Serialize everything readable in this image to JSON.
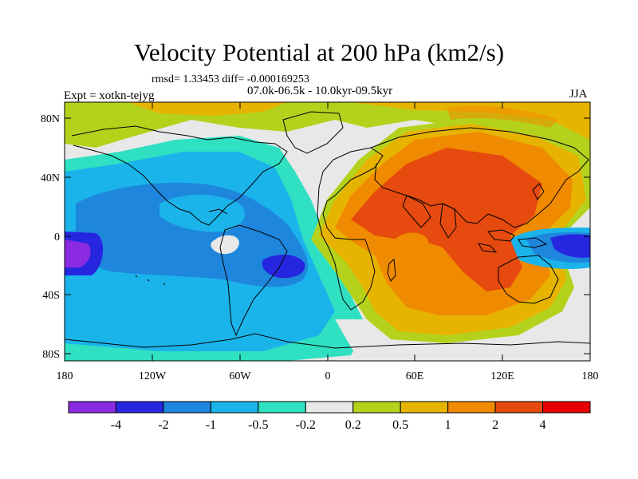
{
  "header": {
    "title": "Velocity Potential at 200 hPa (km2/s)",
    "rmsd_text": "rmsd= 1.33453 diff= -0.000169253",
    "expt": "Expt = xotkn-tejyg",
    "period": "07.0k-06.5k - 10.0kyr-09.5kyr",
    "season": "JJA"
  },
  "axes": {
    "x_ticks": [
      "180",
      "120W",
      "60W",
      "0",
      "60E",
      "120E",
      "180"
    ],
    "y_ticks": [
      "80N",
      "40N",
      "0",
      "40S",
      "80S"
    ]
  },
  "colorbar": {
    "colors": [
      "#8a2be2",
      "#2626e0",
      "#1e86dd",
      "#1ab4ea",
      "#2fe0c2",
      "#e8e8e8",
      "#b4d21c",
      "#e6b400",
      "#f08a00",
      "#e64a0e",
      "#e80000"
    ],
    "labels": [
      "-4",
      "-2",
      "-1",
      "-0.5",
      "-0.2",
      "0.2",
      "0.5",
      "1",
      "2",
      "4"
    ]
  }
}
